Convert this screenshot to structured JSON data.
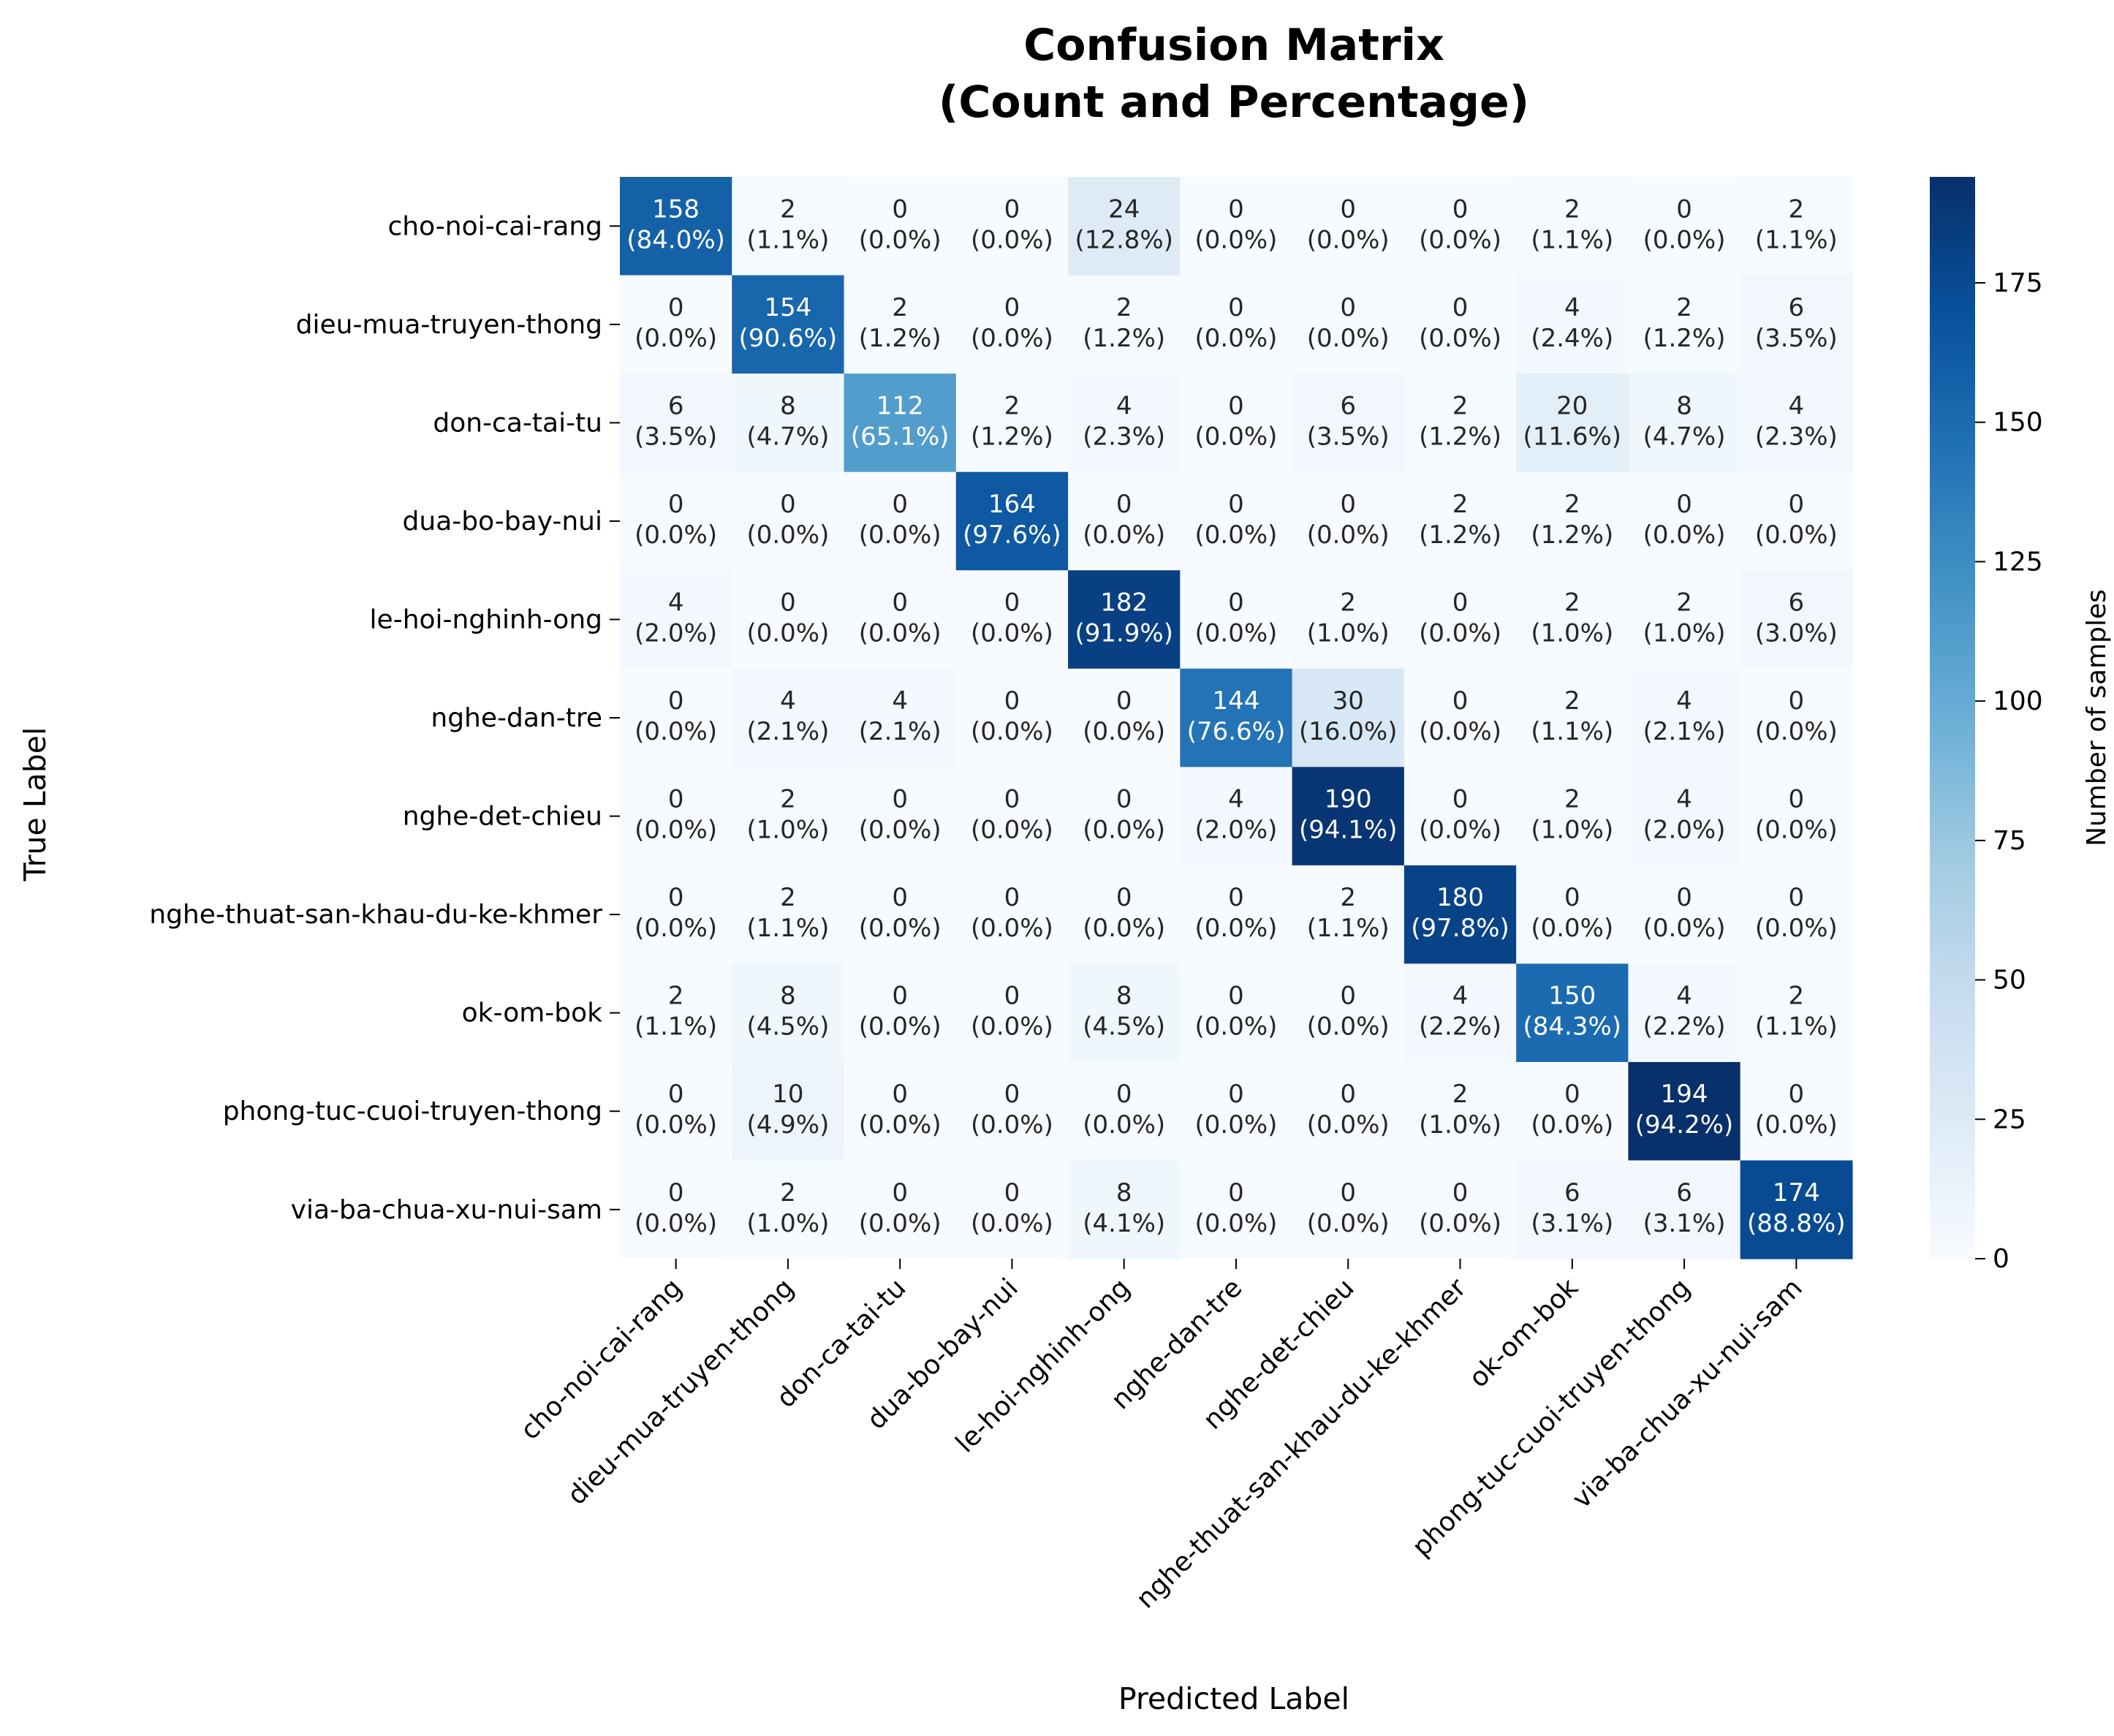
{
  "chart_data": {
    "type": "heatmap",
    "title_lines": [
      "Confusion Matrix",
      "(Count and Percentage)"
    ],
    "xlabel": "Predicted Label",
    "ylabel": "True Label",
    "colorbar_label": "Number of samples",
    "colormap": "Blues",
    "value_range": [
      0,
      194
    ],
    "colorbar_ticks": [
      "0",
      "25",
      "50",
      "75",
      "100",
      "125",
      "150",
      "175"
    ],
    "categories": [
      "cho-noi-cai-rang",
      "dieu-mua-truyen-thong",
      "don-ca-tai-tu",
      "dua-bo-bay-nui",
      "le-hoi-nghinh-ong",
      "nghe-dan-tre",
      "nghe-det-chieu",
      "nghe-thuat-san-khau-du-ke-khmer",
      "ok-om-bok",
      "phong-tuc-cuoi-truyen-thong",
      "via-ba-chua-xu-nui-sam"
    ],
    "counts": [
      [
        158,
        2,
        0,
        0,
        24,
        0,
        0,
        0,
        2,
        0,
        2
      ],
      [
        0,
        154,
        2,
        0,
        2,
        0,
        0,
        0,
        4,
        2,
        6
      ],
      [
        6,
        8,
        112,
        2,
        4,
        0,
        6,
        2,
        20,
        8,
        4
      ],
      [
        0,
        0,
        0,
        164,
        0,
        0,
        0,
        2,
        2,
        0,
        0
      ],
      [
        4,
        0,
        0,
        0,
        182,
        0,
        2,
        0,
        2,
        2,
        6
      ],
      [
        0,
        4,
        4,
        0,
        0,
        144,
        30,
        0,
        2,
        4,
        0
      ],
      [
        0,
        2,
        0,
        0,
        0,
        4,
        190,
        0,
        2,
        4,
        0
      ],
      [
        0,
        2,
        0,
        0,
        0,
        0,
        2,
        180,
        0,
        0,
        0
      ],
      [
        2,
        8,
        0,
        0,
        8,
        0,
        0,
        4,
        150,
        4,
        2
      ],
      [
        0,
        10,
        0,
        0,
        0,
        0,
        0,
        2,
        0,
        194,
        0
      ],
      [
        0,
        2,
        0,
        0,
        8,
        0,
        0,
        0,
        6,
        6,
        174
      ]
    ],
    "percentages": [
      [
        "(84.0%)",
        "(1.1%)",
        "(0.0%)",
        "(0.0%)",
        "(12.8%)",
        "(0.0%)",
        "(0.0%)",
        "(0.0%)",
        "(1.1%)",
        "(0.0%)",
        "(1.1%)"
      ],
      [
        "(0.0%)",
        "(90.6%)",
        "(1.2%)",
        "(0.0%)",
        "(1.2%)",
        "(0.0%)",
        "(0.0%)",
        "(0.0%)",
        "(2.4%)",
        "(1.2%)",
        "(3.5%)"
      ],
      [
        "(3.5%)",
        "(4.7%)",
        "(65.1%)",
        "(1.2%)",
        "(2.3%)",
        "(0.0%)",
        "(3.5%)",
        "(1.2%)",
        "(11.6%)",
        "(4.7%)",
        "(2.3%)"
      ],
      [
        "(0.0%)",
        "(0.0%)",
        "(0.0%)",
        "(97.6%)",
        "(0.0%)",
        "(0.0%)",
        "(0.0%)",
        "(1.2%)",
        "(1.2%)",
        "(0.0%)",
        "(0.0%)"
      ],
      [
        "(2.0%)",
        "(0.0%)",
        "(0.0%)",
        "(0.0%)",
        "(91.9%)",
        "(0.0%)",
        "(1.0%)",
        "(0.0%)",
        "(1.0%)",
        "(1.0%)",
        "(3.0%)"
      ],
      [
        "(0.0%)",
        "(2.1%)",
        "(2.1%)",
        "(0.0%)",
        "(0.0%)",
        "(76.6%)",
        "(16.0%)",
        "(0.0%)",
        "(1.1%)",
        "(2.1%)",
        "(0.0%)"
      ],
      [
        "(0.0%)",
        "(1.0%)",
        "(0.0%)",
        "(0.0%)",
        "(0.0%)",
        "(2.0%)",
        "(94.1%)",
        "(0.0%)",
        "(1.0%)",
        "(2.0%)",
        "(0.0%)"
      ],
      [
        "(0.0%)",
        "(1.1%)",
        "(0.0%)",
        "(0.0%)",
        "(0.0%)",
        "(0.0%)",
        "(1.1%)",
        "(97.8%)",
        "(0.0%)",
        "(0.0%)",
        "(0.0%)"
      ],
      [
        "(1.1%)",
        "(4.5%)",
        "(0.0%)",
        "(0.0%)",
        "(4.5%)",
        "(0.0%)",
        "(0.0%)",
        "(2.2%)",
        "(84.3%)",
        "(2.2%)",
        "(1.1%)"
      ],
      [
        "(0.0%)",
        "(4.9%)",
        "(0.0%)",
        "(0.0%)",
        "(0.0%)",
        "(0.0%)",
        "(0.0%)",
        "(1.0%)",
        "(0.0%)",
        "(94.2%)",
        "(0.0%)"
      ],
      [
        "(0.0%)",
        "(1.0%)",
        "(0.0%)",
        "(0.0%)",
        "(4.1%)",
        "(0.0%)",
        "(0.0%)",
        "(0.0%)",
        "(3.1%)",
        "(3.1%)",
        "(88.8%)"
      ]
    ]
  }
}
